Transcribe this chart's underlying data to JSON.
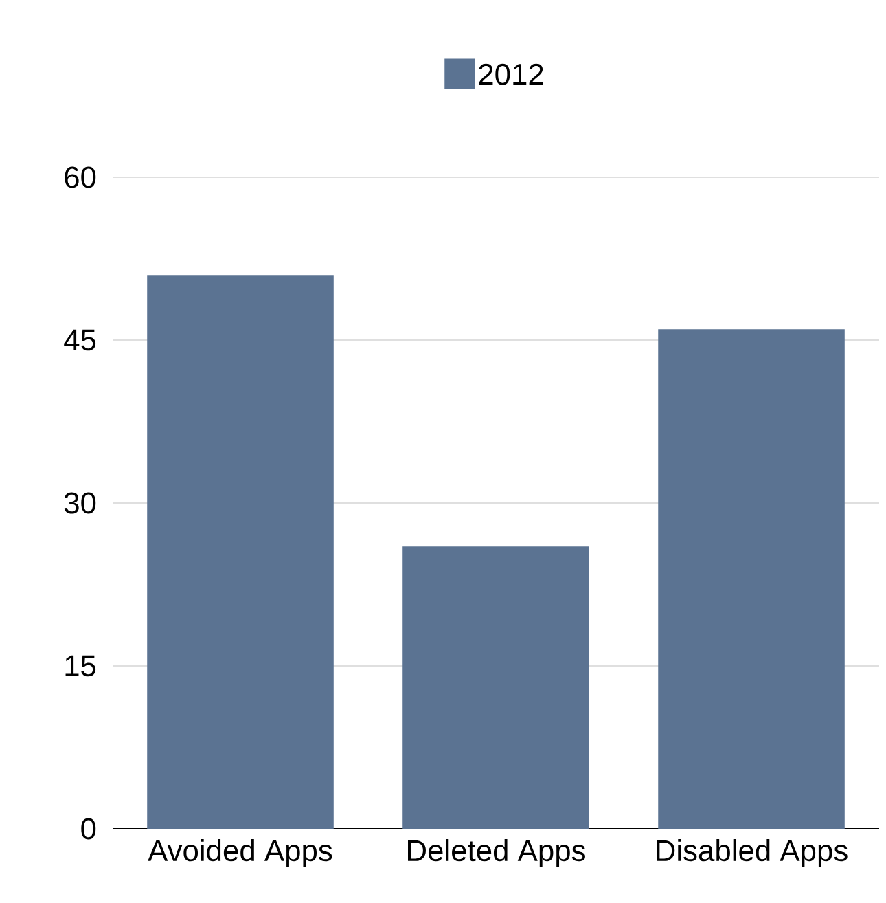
{
  "chart_data": {
    "type": "bar",
    "categories": [
      "Avoided Apps",
      "Deleted Apps",
      "Disabled Apps"
    ],
    "series": [
      {
        "name": "2012",
        "color": "#5b7392",
        "values": [
          51,
          26,
          46
        ]
      }
    ],
    "ylim": [
      0,
      60
    ],
    "yticks": [
      0,
      15,
      30,
      45,
      60
    ],
    "grid": "y",
    "legend": "top"
  }
}
